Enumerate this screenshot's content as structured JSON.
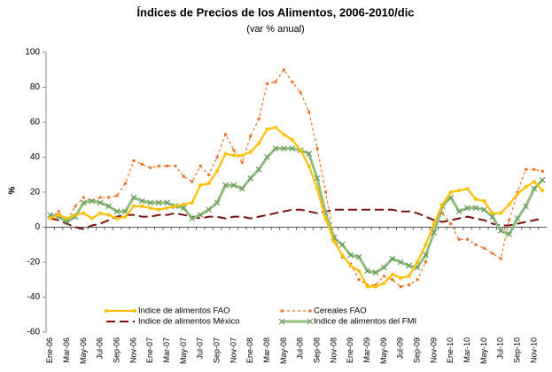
{
  "chart_data": {
    "type": "line",
    "title": "Índices de Precios de los Alimentos, 2006-2010/dic",
    "subtitle": "(var % anual)",
    "y_label": "%",
    "categories": [
      "Ene-06",
      null,
      "Mar-06",
      null,
      "May-06",
      null,
      "Jul-06",
      null,
      "Sep-06",
      null,
      "Nov-06",
      null,
      "Ene-07",
      null,
      "Mar-07",
      null,
      "May-07",
      null,
      "Jul-07",
      null,
      "Sep-07",
      null,
      "Nov-07",
      null,
      "Ene-08",
      null,
      "Mar-08",
      null,
      "May-08",
      null,
      "Jul-08",
      null,
      "Sep-08",
      null,
      "Nov-08",
      null,
      "Ene-09",
      null,
      "Mar-09",
      null,
      "May-09",
      null,
      "Jul-09",
      null,
      "Sep-09",
      null,
      "Nov-09",
      null,
      "Ene-10",
      null,
      "Mar-10",
      null,
      "May-10",
      null,
      "Jul-10",
      null,
      "Sep-10",
      null,
      "Nov-10",
      null
    ],
    "series": [
      {
        "name": "Indice de alimentos FAO",
        "color": "#ffc000",
        "width": 2.2,
        "dash": "none",
        "marker": "circle",
        "values": [
          5,
          7,
          5,
          7,
          8,
          5,
          8,
          7,
          5,
          6,
          12,
          12,
          11,
          10,
          11,
          12,
          13,
          14,
          24,
          25,
          32,
          42,
          41,
          41,
          43,
          48,
          56,
          57,
          53,
          50,
          44,
          35,
          22,
          5,
          -8,
          -16,
          -22,
          -25,
          -34,
          -34,
          -32,
          -27,
          -29,
          -28,
          -20,
          -10,
          2,
          13,
          20,
          21,
          22,
          16,
          15,
          8,
          8,
          13,
          19,
          23,
          26,
          21
        ]
      },
      {
        "name": "Cereales FAO",
        "color": "#f07020",
        "width": 1.2,
        "dash": "3,3",
        "marker": "dot",
        "values": [
          5,
          9,
          3,
          12,
          17,
          15,
          17,
          17,
          18,
          25,
          38,
          36,
          34,
          35,
          35,
          35,
          29,
          26,
          35,
          30,
          40,
          53,
          44,
          37,
          52,
          62,
          82,
          83,
          90,
          83,
          77,
          66,
          45,
          20,
          -5,
          -17,
          -21,
          -30,
          -33,
          -33,
          -28,
          -30,
          -34,
          -33,
          -30,
          -20,
          2,
          8,
          2,
          -7,
          -7,
          -10,
          -12,
          -15,
          -18,
          4,
          20,
          33,
          33,
          32
        ]
      },
      {
        "name": "Indice de alimentos México",
        "color": "#7b1010",
        "width": 2,
        "dash": "10,5",
        "marker": "none",
        "values": [
          5,
          4,
          2,
          0,
          -1,
          1,
          2,
          4,
          6,
          7,
          7,
          6,
          6,
          7,
          7,
          8,
          7,
          6,
          5,
          6,
          6,
          5,
          6,
          6,
          5,
          6,
          7,
          8,
          9,
          10,
          10,
          9,
          8,
          9,
          10,
          10,
          10,
          10,
          10,
          10,
          10,
          10,
          9,
          9,
          8,
          6,
          4,
          3,
          4,
          5,
          6,
          5,
          4,
          2,
          1,
          1,
          2,
          3,
          4,
          5
        ]
      },
      {
        "name": "Indice de alimentos del FMI",
        "color": "#8fbf7f",
        "width": 3,
        "dash": "none",
        "marker": "cross",
        "values": [
          7,
          6,
          3,
          6,
          14,
          15,
          14,
          12,
          9,
          9,
          17,
          15,
          14,
          14,
          14,
          12,
          11,
          5,
          7,
          10,
          14,
          24,
          24,
          22,
          28,
          33,
          40,
          45,
          45,
          45,
          44,
          42,
          28,
          8,
          -6,
          -10,
          -16,
          -17,
          -25,
          -26,
          -23,
          -18,
          -20,
          -22,
          -23,
          -16,
          -3,
          12,
          17,
          9,
          11,
          11,
          10,
          6,
          -2,
          -4,
          5,
          12,
          22,
          27
        ]
      }
    ],
    "ylim": [
      -60,
      100
    ],
    "yticks": [
      -60,
      -40,
      -20,
      0,
      20,
      40,
      60,
      80,
      100
    ],
    "grid": false
  }
}
